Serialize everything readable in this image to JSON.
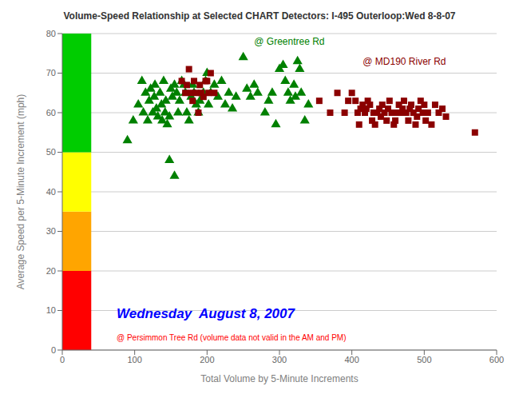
{
  "chart_data": {
    "type": "scatter",
    "title": "Volume-Speed Relationship at Selected CHART Detectors: I-495 Outerloop:Wed 8-8-07",
    "x_label": "Total Volume by 5-Minute Increments",
    "y_label": "Average Speed per 5-Minute Increment (mph)",
    "xlim": [
      0,
      600
    ],
    "ylim": [
      0,
      80
    ],
    "xticks": [
      0,
      100,
      200,
      300,
      400,
      500,
      600
    ],
    "yticks": [
      0,
      10,
      20,
      30,
      40,
      50,
      60,
      70,
      80
    ],
    "grid": true,
    "bands": [
      {
        "y0": 0,
        "y1": 20,
        "color": "#FF0000"
      },
      {
        "y0": 20,
        "y1": 35,
        "color": "#FFA500"
      },
      {
        "y0": 35,
        "y1": 50,
        "color": "#FFFF00"
      },
      {
        "y0": 50,
        "y1": 80,
        "color": "#00CC00"
      }
    ],
    "series": [
      {
        "name": "@ Greentree Rd",
        "color": "#008000",
        "marker": "triangle",
        "x": [
          90,
          98,
          105,
          110,
          112,
          115,
          118,
          120,
          122,
          125,
          127,
          128,
          130,
          132,
          135,
          137,
          138,
          140,
          142,
          143,
          145,
          148,
          150,
          152,
          155,
          158,
          160,
          162,
          165,
          168,
          170,
          172,
          175,
          178,
          180,
          182,
          185,
          188,
          190,
          195,
          198,
          200,
          202,
          205,
          210,
          215,
          220,
          225,
          230,
          235,
          240,
          250,
          255,
          260,
          265,
          270,
          280,
          285,
          290,
          295,
          300,
          305,
          308,
          312,
          315,
          320,
          322,
          325,
          328,
          330,
          335,
          340,
          148,
          155
        ],
        "values": [
          53,
          58,
          62,
          68,
          60,
          65,
          58,
          63,
          66,
          60,
          64,
          67,
          61,
          59,
          65,
          62,
          58,
          68,
          60,
          63,
          57,
          59,
          66,
          64,
          67,
          65,
          60,
          63,
          68,
          67,
          65,
          60,
          58,
          64,
          67,
          65,
          62,
          60,
          63,
          65,
          68,
          70,
          62,
          65,
          67,
          64,
          68,
          62,
          65,
          61,
          64,
          74,
          66,
          64,
          67,
          65,
          60,
          63,
          65,
          57,
          71,
          72,
          68,
          65,
          63,
          67,
          64,
          73,
          71,
          65,
          58,
          62,
          48,
          44
        ]
      },
      {
        "name": "@ MD190 River Rd",
        "color": "#8B0000",
        "marker": "square",
        "x": [
          165,
          170,
          172,
          175,
          178,
          180,
          182,
          185,
          188,
          190,
          192,
          195,
          198,
          200,
          202,
          205,
          210,
          355,
          370,
          380,
          390,
          395,
          400,
          405,
          408,
          410,
          412,
          415,
          418,
          420,
          422,
          425,
          428,
          430,
          432,
          435,
          438,
          440,
          442,
          445,
          448,
          450,
          452,
          455,
          458,
          460,
          462,
          465,
          468,
          470,
          472,
          475,
          478,
          480,
          482,
          485,
          488,
          490,
          492,
          495,
          498,
          500,
          502,
          505,
          510,
          515,
          520,
          525,
          530,
          570
        ],
        "values": [
          68,
          65,
          67,
          71,
          65,
          63,
          68,
          65,
          60,
          67,
          65,
          64,
          68,
          68,
          65,
          70,
          65,
          63,
          60,
          65,
          60,
          63,
          65,
          63,
          60,
          57,
          61,
          62,
          60,
          61,
          63,
          62,
          58,
          60,
          57,
          60,
          61,
          59,
          62,
          60,
          58,
          61,
          63,
          60,
          57,
          58,
          60,
          62,
          60,
          61,
          63,
          60,
          58,
          61,
          62,
          60,
          57,
          59,
          61,
          63,
          60,
          62,
          58,
          60,
          57,
          62,
          60,
          61,
          59,
          55
        ]
      }
    ],
    "annotations": [
      {
        "text": "Wednesday  August 8, 2007",
        "color": "#0000FF"
      },
      {
        "text": "@ Persimmon Tree Rd (volume data not valid in the AM and PM)",
        "color": "#FF0000"
      }
    ]
  }
}
